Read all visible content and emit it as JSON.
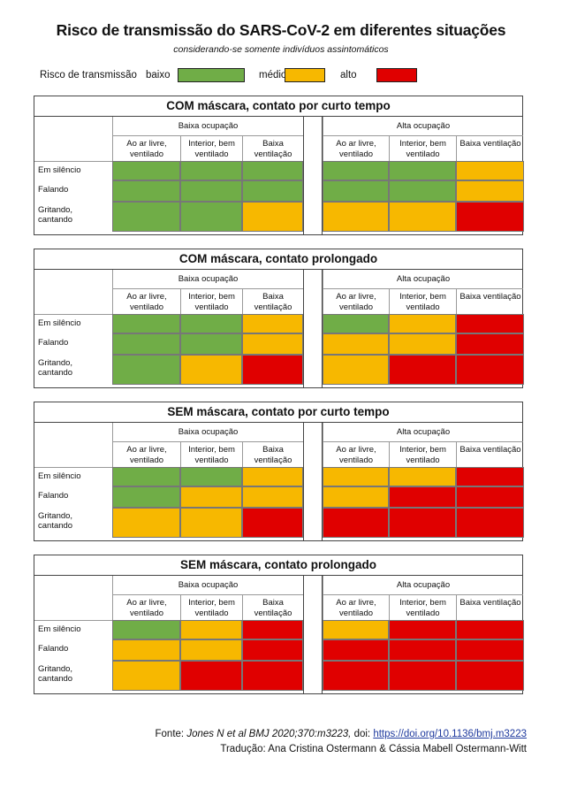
{
  "title": "Risco de transmissão do SARS-CoV-2 em diferentes situações",
  "subtitle": "considerando-se somente indivíduos assintomáticos",
  "legend": {
    "label": "Risco de transmissão",
    "items": [
      {
        "label": "baixo",
        "color": "#70ad47"
      },
      {
        "label": "médio",
        "color": "#f7b800"
      },
      {
        "label": "alto",
        "color": "#e00000"
      }
    ]
  },
  "groups": [
    "Baixa ocupação",
    "Alta ocupação"
  ],
  "columns": [
    "Ao ar livre, ventilado",
    "Interior, bem ventilado",
    "Baixa ventilação"
  ],
  "rows": [
    "Em silêncio",
    "Falando",
    "Gritando, cantando"
  ],
  "sections": [
    {
      "title": "COM máscara, contato por curto tempo",
      "levels": [
        [
          "baixo",
          "baixo",
          "baixo",
          "baixo",
          "baixo",
          "medio"
        ],
        [
          "baixo",
          "baixo",
          "baixo",
          "baixo",
          "baixo",
          "medio"
        ],
        [
          "baixo",
          "baixo",
          "medio",
          "medio",
          "medio",
          "alto"
        ]
      ]
    },
    {
      "title": "COM máscara, contato prolongado",
      "levels": [
        [
          "baixo",
          "baixo",
          "medio",
          "baixo",
          "medio",
          "alto"
        ],
        [
          "baixo",
          "baixo",
          "medio",
          "medio",
          "medio",
          "alto"
        ],
        [
          "baixo",
          "medio",
          "alto",
          "medio",
          "alto",
          "alto"
        ]
      ]
    },
    {
      "title": "SEM máscara, contato por curto tempo",
      "levels": [
        [
          "baixo",
          "baixo",
          "medio",
          "medio",
          "medio",
          "alto"
        ],
        [
          "baixo",
          "medio",
          "medio",
          "medio",
          "alto",
          "alto"
        ],
        [
          "medio",
          "medio",
          "alto",
          "alto",
          "alto",
          "alto"
        ]
      ]
    },
    {
      "title": "SEM máscara, contato prolongado",
      "levels": [
        [
          "baixo",
          "medio",
          "alto",
          "medio",
          "alto",
          "alto"
        ],
        [
          "medio",
          "medio",
          "alto",
          "alto",
          "alto",
          "alto"
        ],
        [
          "medio",
          "alto",
          "alto",
          "alto",
          "alto",
          "alto"
        ]
      ]
    }
  ],
  "footer": {
    "source_label": "Fonte:",
    "source_citation": "Jones N et al BMJ 2020;370:m3223,",
    "doi_label": "doi:",
    "doi_link": "https://doi.org/10.1136/bmj.m3223",
    "translation": "Tradução: Ana Cristina Ostermann & Cássia Mabell Ostermann-Witt"
  }
}
